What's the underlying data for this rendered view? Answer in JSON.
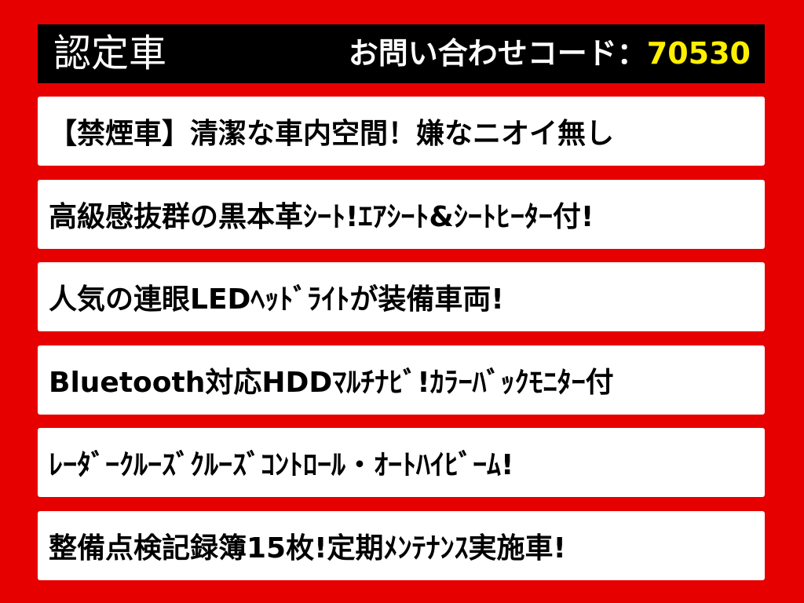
{
  "header": {
    "title": "認定車",
    "inquiry_label": "お問い合わせコード：",
    "inquiry_code": "70530"
  },
  "lines": [
    "【禁煙車】清潔な車内空間！嫌なニオイ無し",
    "高級感抜群の黒本革ｼｰﾄ!ｴｱｼｰﾄ&ｼｰﾄﾋｰﾀｰ付!",
    "人気の連眼LEDﾍｯﾄﾞﾗｲﾄが装備車両!",
    "Bluetooth対応HDDﾏﾙﾁﾅﾋﾞ!ｶﾗｰﾊﾞｯｸﾓﾆﾀｰ付",
    "ﾚｰﾀﾞｰｸﾙｰｽﾞｸﾙｰｽﾞｺﾝﾄﾛｰﾙ・ｵｰﾄﾊｲﾋﾞｰﾑ!",
    "整備点検記録簿15枚!定期ﾒﾝﾃﾅﾝｽ実施車!"
  ]
}
